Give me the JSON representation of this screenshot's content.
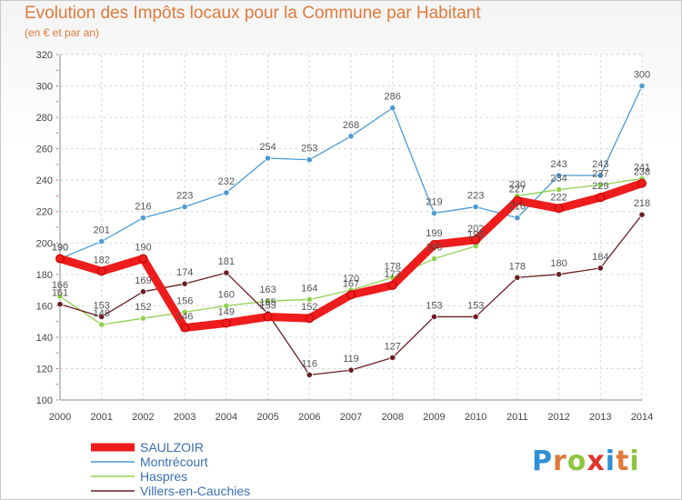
{
  "title": "Evolution des Impôts locaux pour la Commune par Habitant",
  "subtitle": "(en € et par an)",
  "logo": {
    "text": "ProXiti",
    "letters": [
      "P",
      "r",
      "o",
      "x",
      "i",
      "t",
      "i"
    ],
    "colors": [
      "#2d8fd6",
      "#e07a3a",
      "#8cc63f",
      "#e0342a",
      "#2d8fd6",
      "#e07a3a",
      "#8cc63f"
    ]
  },
  "chart_data": {
    "type": "line",
    "title": "Evolution des Impôts locaux pour la Commune par Habitant",
    "ylabel": "(en € et par an)",
    "xlabel": "",
    "ylim": [
      100,
      320
    ],
    "yticks": [
      100,
      120,
      140,
      160,
      180,
      200,
      220,
      240,
      260,
      280,
      300,
      320
    ],
    "grid": true,
    "legend_position": "bottom-left",
    "x": [
      "2000",
      "2001",
      "2002",
      "2003",
      "2004",
      "2005",
      "2006",
      "2007",
      "2008",
      "2009",
      "2010",
      "2011",
      "2012",
      "2013",
      "2014"
    ],
    "series": [
      {
        "name": "SAULZOIR",
        "color": "#ee1c1c",
        "values": [
          190,
          182,
          190,
          146,
          149,
          153,
          152,
          167,
          173,
          199,
          202,
          227,
          222,
          229,
          238
        ]
      },
      {
        "name": "Montrécourt",
        "color": "#4d9ad4",
        "values": [
          190,
          201,
          216,
          223,
          232,
          254,
          253,
          268,
          286,
          219,
          223,
          216,
          243,
          243,
          300
        ]
      },
      {
        "name": "Haspres",
        "color": "#8fd14f",
        "values": [
          166,
          148,
          152,
          156,
          160,
          163,
          164,
          170,
          178,
          190,
          198,
          230,
          234,
          237,
          241
        ]
      },
      {
        "name": "Villers-en-Cauchies",
        "color": "#6b1d23",
        "values": [
          161,
          153,
          169,
          174,
          181,
          155,
          116,
          119,
          127,
          153,
          153,
          178,
          180,
          184,
          218
        ]
      }
    ]
  }
}
